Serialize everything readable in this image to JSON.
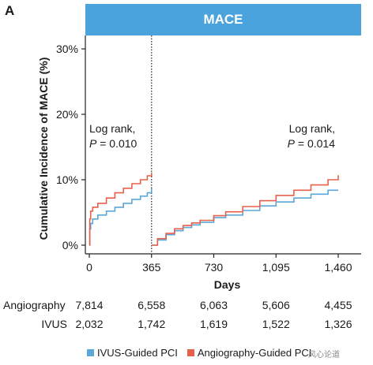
{
  "panel_label": "A",
  "watermark": "风心论道",
  "chart_data": {
    "type": "line",
    "title": "MACE",
    "xlabel": "Days",
    "ylabel": "Cumulative Incidence of MACE (%)",
    "xlim": [
      0,
      1460
    ],
    "ylim": [
      0,
      30
    ],
    "x_ticks": [
      0,
      365,
      730,
      1095,
      1460
    ],
    "x_tick_labels": [
      "0",
      "365",
      "730",
      "1,095",
      "1,460"
    ],
    "y_ticks": [
      0,
      10,
      20,
      30
    ],
    "y_tick_labels": [
      "0%",
      "10%",
      "20%",
      "30%"
    ],
    "landmark_day": 365,
    "annotations": [
      {
        "line1": "Log rank,",
        "line2_p": "P",
        "line2_rest": " = 0.010"
      },
      {
        "line1": "Log rank,",
        "line2_p": "P",
        "line2_rest": " = 0.014"
      }
    ],
    "series": [
      {
        "name": "IVUS-Guided PCI",
        "color": "#5aa7d8",
        "segments": [
          [
            [
              0,
              0
            ],
            [
              3,
              2.5
            ],
            [
              8,
              3.3
            ],
            [
              20,
              4.0
            ],
            [
              50,
              4.6
            ],
            [
              100,
              5.2
            ],
            [
              150,
              5.8
            ],
            [
              200,
              6.4
            ],
            [
              250,
              7.0
            ],
            [
              300,
              7.5
            ],
            [
              340,
              8.0
            ],
            [
              365,
              8.7
            ]
          ],
          [
            [
              365,
              0
            ],
            [
              400,
              0.8
            ],
            [
              450,
              1.6
            ],
            [
              500,
              2.2
            ],
            [
              550,
              2.7
            ],
            [
              600,
              3.1
            ],
            [
              650,
              3.5
            ],
            [
              730,
              4.2
            ],
            [
              800,
              4.6
            ],
            [
              900,
              5.3
            ],
            [
              1000,
              6.0
            ],
            [
              1095,
              6.6
            ],
            [
              1200,
              7.2
            ],
            [
              1300,
              7.8
            ],
            [
              1400,
              8.4
            ],
            [
              1460,
              8.4
            ]
          ]
        ]
      },
      {
        "name": "Angiography-Guided PCI",
        "color": "#e8604c",
        "segments": [
          [
            [
              0,
              0
            ],
            [
              3,
              4.0
            ],
            [
              8,
              5.2
            ],
            [
              20,
              5.8
            ],
            [
              50,
              6.4
            ],
            [
              100,
              7.2
            ],
            [
              150,
              8.0
            ],
            [
              200,
              8.7
            ],
            [
              250,
              9.4
            ],
            [
              300,
              10.0
            ],
            [
              340,
              10.6
            ],
            [
              365,
              11.1
            ]
          ],
          [
            [
              365,
              0
            ],
            [
              400,
              1.0
            ],
            [
              450,
              1.8
            ],
            [
              500,
              2.5
            ],
            [
              550,
              3.0
            ],
            [
              600,
              3.4
            ],
            [
              650,
              3.8
            ],
            [
              730,
              4.5
            ],
            [
              800,
              5.1
            ],
            [
              900,
              5.9
            ],
            [
              1000,
              6.8
            ],
            [
              1095,
              7.6
            ],
            [
              1200,
              8.4
            ],
            [
              1300,
              9.2
            ],
            [
              1400,
              10.0
            ],
            [
              1460,
              10.7
            ]
          ]
        ]
      }
    ],
    "risk_table": {
      "label_angio": "Angiography",
      "label_ivus": "IVUS",
      "angiography": [
        "7,814",
        "6,558",
        "6,063",
        "5,606",
        "4,455"
      ],
      "ivus": [
        "2,032",
        "1,742",
        "1,619",
        "1,522",
        "1,326"
      ]
    }
  }
}
